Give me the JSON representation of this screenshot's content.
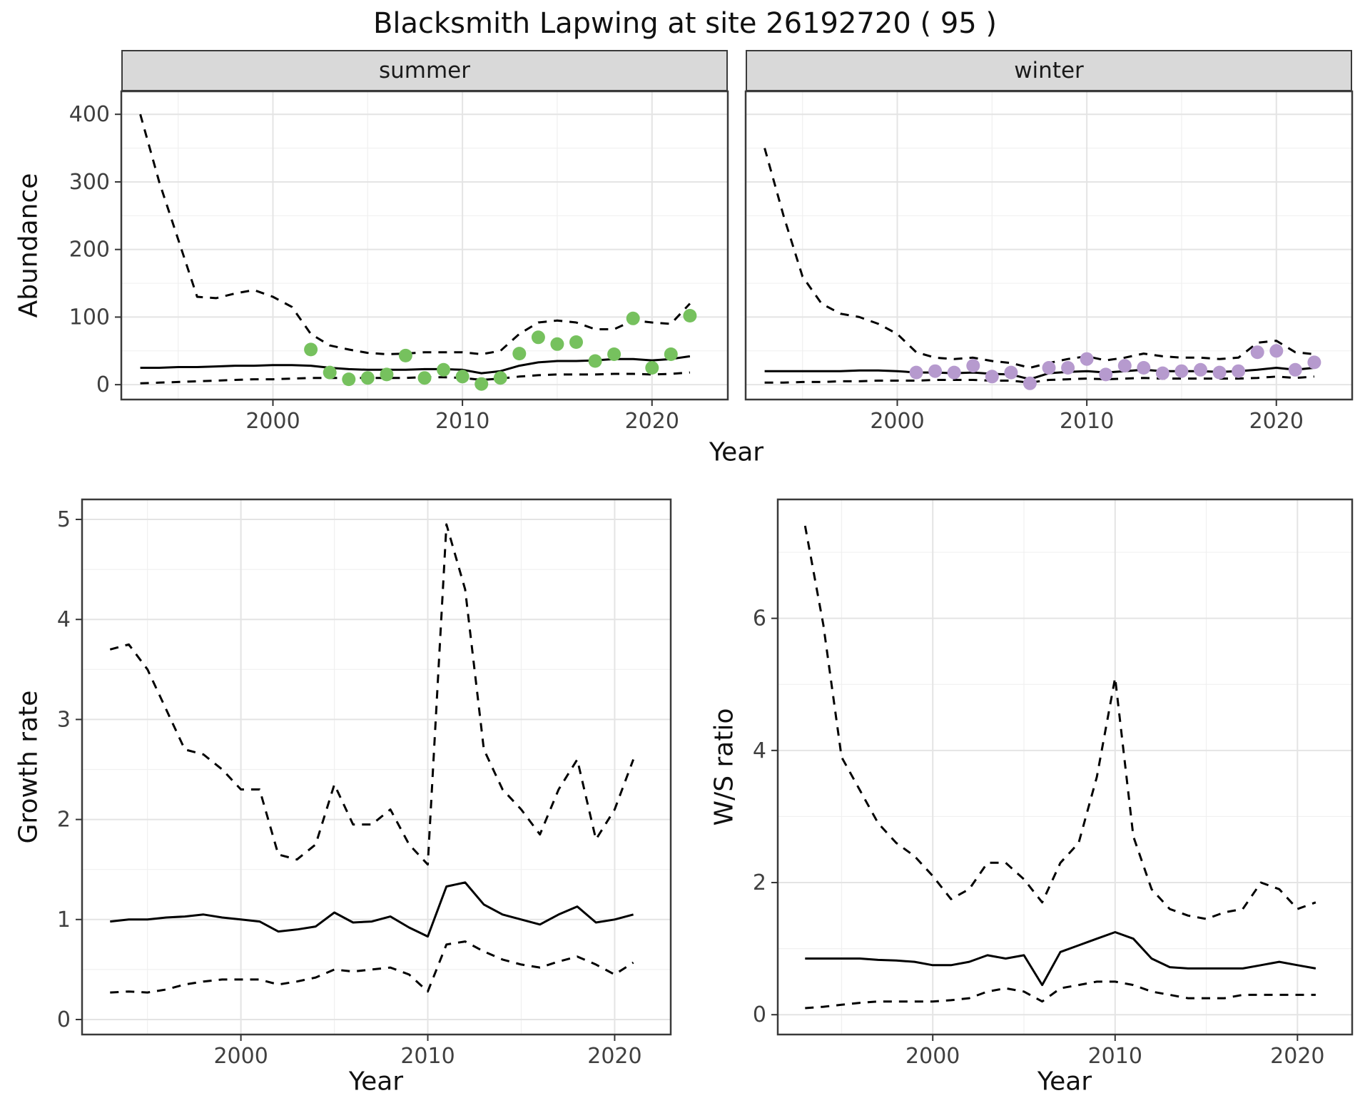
{
  "title": "Blacksmith Lapwing at site 26192720 ( 95 )",
  "facets": [
    {
      "label": "summer"
    },
    {
      "label": "winter"
    }
  ],
  "axes": {
    "top_ylabel": "Abundance",
    "top_xlabel": "Year",
    "bl_ylabel": "Growth rate",
    "bl_xlabel": "Year",
    "br_ylabel": "W/S ratio",
    "br_xlabel": "Year"
  },
  "colors": {
    "summer_point": "#76c15e",
    "winter_point": "#b69ace",
    "line": "#000000",
    "strip_bg": "#d9d9d9",
    "panel_border": "#3a3a3a",
    "grid_major": "#e4e4e4",
    "grid_minor": "#f0f0f0",
    "tick_text": "#404040"
  },
  "chart_data": [
    {
      "id": "abundance_summer",
      "type": "line",
      "facet": "summer",
      "xlabel": "Year",
      "ylabel": "Abundance",
      "xlim": [
        1992,
        2024
      ],
      "ylim": [
        0,
        400
      ],
      "xticks": [
        2000,
        2010,
        2020
      ],
      "yticks": [
        0,
        100,
        200,
        300,
        400
      ],
      "x": [
        1993,
        1994,
        1995,
        1996,
        1997,
        1998,
        1999,
        2000,
        2001,
        2002,
        2003,
        2004,
        2005,
        2006,
        2007,
        2008,
        2009,
        2010,
        2011,
        2012,
        2013,
        2014,
        2015,
        2016,
        2017,
        2018,
        2019,
        2020,
        2021,
        2022
      ],
      "series": [
        {
          "name": "upper_ci",
          "style": "dashed",
          "values": [
            400,
            300,
            215,
            130,
            128,
            135,
            140,
            130,
            115,
            75,
            58,
            52,
            47,
            45,
            46,
            48,
            48,
            48,
            45,
            50,
            75,
            92,
            95,
            92,
            82,
            82,
            95,
            92,
            90,
            120
          ]
        },
        {
          "name": "estimate",
          "style": "solid",
          "values": [
            25,
            25,
            26,
            26,
            27,
            28,
            28,
            29,
            29,
            28,
            25,
            23,
            22,
            22,
            22,
            23,
            23,
            22,
            17,
            20,
            28,
            33,
            35,
            35,
            36,
            38,
            38,
            36,
            38,
            42
          ]
        },
        {
          "name": "lower_ci",
          "style": "dashed",
          "values": [
            2,
            3,
            4,
            5,
            6,
            7,
            8,
            8,
            9,
            10,
            10,
            10,
            10,
            10,
            10,
            11,
            11,
            10,
            7,
            9,
            12,
            14,
            15,
            15,
            15,
            16,
            16,
            15,
            16,
            18
          ]
        }
      ],
      "points": {
        "name": "observed_counts",
        "color": "#76c15e",
        "x": [
          2002,
          2003,
          2004,
          2005,
          2006,
          2007,
          2008,
          2009,
          2010,
          2011,
          2012,
          2013,
          2014,
          2015,
          2016,
          2017,
          2018,
          2019,
          2020,
          2021,
          2022
        ],
        "y": [
          52,
          18,
          8,
          10,
          15,
          43,
          10,
          22,
          12,
          1,
          10,
          46,
          70,
          60,
          63,
          35,
          45,
          98,
          25,
          45,
          102
        ]
      }
    },
    {
      "id": "abundance_winter",
      "type": "line",
      "facet": "winter",
      "xlabel": "Year",
      "ylabel": "Abundance",
      "xlim": [
        1992,
        2024
      ],
      "ylim": [
        0,
        400
      ],
      "xticks": [
        2000,
        2010,
        2020
      ],
      "yticks": [
        0,
        100,
        200,
        300,
        400
      ],
      "x": [
        1993,
        1994,
        1995,
        1996,
        1997,
        1998,
        1999,
        2000,
        2001,
        2002,
        2003,
        2004,
        2005,
        2006,
        2007,
        2008,
        2009,
        2010,
        2011,
        2012,
        2013,
        2014,
        2015,
        2016,
        2017,
        2018,
        2019,
        2020,
        2021,
        2022
      ],
      "series": [
        {
          "name": "upper_ci",
          "style": "dashed",
          "values": [
            350,
            250,
            160,
            120,
            105,
            100,
            90,
            75,
            48,
            40,
            38,
            40,
            35,
            32,
            25,
            32,
            38,
            42,
            36,
            40,
            46,
            42,
            40,
            40,
            38,
            40,
            62,
            65,
            48,
            45
          ]
        },
        {
          "name": "estimate",
          "style": "solid",
          "values": [
            20,
            20,
            20,
            20,
            20,
            21,
            21,
            20,
            18,
            18,
            17,
            18,
            16,
            15,
            8,
            17,
            19,
            20,
            18,
            20,
            22,
            20,
            20,
            20,
            19,
            20,
            22,
            25,
            22,
            25
          ]
        },
        {
          "name": "lower_ci",
          "style": "dashed",
          "values": [
            3,
            3,
            4,
            4,
            5,
            5,
            6,
            6,
            6,
            7,
            7,
            7,
            6,
            6,
            3,
            7,
            8,
            9,
            8,
            9,
            10,
            9,
            9,
            9,
            9,
            9,
            10,
            12,
            10,
            12
          ]
        }
      ],
      "points": {
        "name": "observed_counts",
        "color": "#b69ace",
        "x": [
          2001,
          2002,
          2003,
          2004,
          2005,
          2006,
          2007,
          2008,
          2009,
          2010,
          2011,
          2012,
          2013,
          2014,
          2015,
          2016,
          2017,
          2018,
          2019,
          2020,
          2021,
          2022
        ],
        "y": [
          18,
          20,
          18,
          28,
          12,
          18,
          2,
          25,
          25,
          38,
          15,
          28,
          25,
          17,
          20,
          22,
          18,
          20,
          48,
          50,
          22,
          33
        ]
      }
    },
    {
      "id": "growth_rate",
      "type": "line",
      "xlabel": "Year",
      "ylabel": "Growth rate",
      "xlim": [
        1991.5,
        2023
      ],
      "ylim": [
        0,
        5
      ],
      "xticks": [
        2000,
        2010,
        2020
      ],
      "yticks": [
        0,
        1,
        2,
        3,
        4,
        5
      ],
      "x": [
        1993,
        1994,
        1995,
        1996,
        1997,
        1998,
        1999,
        2000,
        2001,
        2002,
        2003,
        2004,
        2005,
        2006,
        2007,
        2008,
        2009,
        2010,
        2011,
        2012,
        2013,
        2014,
        2015,
        2016,
        2017,
        2018,
        2019,
        2020,
        2021
      ],
      "series": [
        {
          "name": "upper_ci",
          "style": "dashed",
          "values": [
            3.7,
            3.75,
            3.5,
            3.1,
            2.7,
            2.65,
            2.5,
            2.3,
            2.3,
            1.65,
            1.6,
            1.75,
            2.35,
            1.95,
            1.95,
            2.1,
            1.75,
            1.55,
            4.95,
            4.3,
            2.7,
            2.3,
            2.1,
            1.85,
            2.3,
            2.6,
            1.8,
            2.1,
            2.6
          ]
        },
        {
          "name": "estimate",
          "style": "solid",
          "values": [
            0.98,
            1.0,
            1.0,
            1.02,
            1.03,
            1.05,
            1.02,
            1.0,
            0.98,
            0.88,
            0.9,
            0.93,
            1.07,
            0.97,
            0.98,
            1.03,
            0.92,
            0.83,
            1.33,
            1.37,
            1.15,
            1.05,
            1.0,
            0.95,
            1.05,
            1.13,
            0.97,
            1.0,
            1.05
          ]
        },
        {
          "name": "lower_ci",
          "style": "dashed",
          "values": [
            0.27,
            0.28,
            0.27,
            0.3,
            0.35,
            0.38,
            0.4,
            0.4,
            0.4,
            0.35,
            0.38,
            0.42,
            0.5,
            0.48,
            0.5,
            0.52,
            0.45,
            0.28,
            0.75,
            0.78,
            0.68,
            0.6,
            0.55,
            0.52,
            0.58,
            0.63,
            0.55,
            0.45,
            0.57
          ]
        }
      ]
    },
    {
      "id": "ws_ratio",
      "type": "line",
      "xlabel": "Year",
      "ylabel": "W/S ratio",
      "xlim": [
        1991.5,
        2023
      ],
      "ylim": [
        0,
        7.5
      ],
      "xticks": [
        2000,
        2010,
        2020
      ],
      "yticks": [
        0,
        2,
        4,
        6
      ],
      "x": [
        1993,
        1994,
        1995,
        1996,
        1997,
        1998,
        1999,
        2000,
        2001,
        2002,
        2003,
        2004,
        2005,
        2006,
        2007,
        2008,
        2009,
        2010,
        2011,
        2012,
        2013,
        2014,
        2015,
        2016,
        2017,
        2018,
        2019,
        2020,
        2021
      ],
      "series": [
        {
          "name": "upper_ci",
          "style": "dashed",
          "values": [
            7.4,
            5.9,
            3.9,
            3.4,
            2.9,
            2.6,
            2.4,
            2.1,
            1.75,
            1.9,
            2.3,
            2.3,
            2.05,
            1.7,
            2.3,
            2.6,
            3.6,
            5.1,
            2.7,
            1.9,
            1.6,
            1.5,
            1.45,
            1.55,
            1.6,
            2.0,
            1.9,
            1.6,
            1.7
          ]
        },
        {
          "name": "estimate",
          "style": "solid",
          "values": [
            0.85,
            0.85,
            0.85,
            0.85,
            0.83,
            0.82,
            0.8,
            0.75,
            0.75,
            0.8,
            0.9,
            0.85,
            0.9,
            0.45,
            0.95,
            1.05,
            1.15,
            1.25,
            1.15,
            0.85,
            0.72,
            0.7,
            0.7,
            0.7,
            0.7,
            0.75,
            0.8,
            0.75,
            0.7
          ]
        },
        {
          "name": "lower_ci",
          "style": "dashed",
          "values": [
            0.1,
            0.12,
            0.15,
            0.18,
            0.2,
            0.2,
            0.2,
            0.2,
            0.22,
            0.25,
            0.35,
            0.4,
            0.35,
            0.2,
            0.4,
            0.45,
            0.5,
            0.5,
            0.45,
            0.35,
            0.3,
            0.25,
            0.25,
            0.25,
            0.3,
            0.3,
            0.3,
            0.3,
            0.3
          ]
        }
      ]
    }
  ]
}
